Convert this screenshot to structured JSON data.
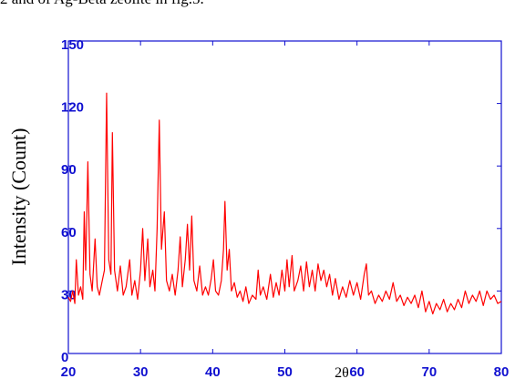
{
  "chart_data": {
    "type": "line",
    "annotation": "2 and of Ag-Beta zeolite in fig.5.",
    "xlabel": "2θ",
    "ylabel": "Intensity (Count)",
    "xlim": [
      20,
      80
    ],
    "xticks": [
      20,
      30,
      40,
      50,
      60,
      70,
      80
    ],
    "ylim": [
      0,
      150
    ],
    "yticks": [
      0,
      30,
      60,
      90,
      120,
      150
    ],
    "color": "#ff0000",
    "x": [
      20,
      20.3,
      20.6,
      20.9,
      21.1,
      21.4,
      21.7,
      22,
      22.2,
      22.4,
      22.7,
      23,
      23.3,
      23.7,
      24,
      24.3,
      24.7,
      25,
      25.3,
      25.6,
      25.9,
      26.1,
      26.4,
      26.8,
      27.2,
      27.6,
      28,
      28.5,
      28.8,
      29.2,
      29.6,
      30,
      30.3,
      30.6,
      31,
      31.3,
      31.7,
      32,
      32.3,
      32.6,
      32.9,
      33.3,
      33.6,
      34,
      34.4,
      34.8,
      35.2,
      35.5,
      35.8,
      36.2,
      36.5,
      36.8,
      37.1,
      37.4,
      37.8,
      38.2,
      38.6,
      39,
      39.4,
      39.8,
      40.1,
      40.4,
      40.8,
      41.2,
      41.5,
      41.7,
      42,
      42.3,
      42.6,
      43,
      43.4,
      43.8,
      44.2,
      44.6,
      45,
      45.5,
      46,
      46.3,
      46.6,
      47,
      47.5,
      48,
      48.4,
      48.8,
      49.2,
      49.6,
      50,
      50.3,
      50.6,
      51,
      51.3,
      51.8,
      52.2,
      52.6,
      53,
      53.4,
      53.8,
      54.2,
      54.6,
      55,
      55.4,
      55.8,
      56.2,
      56.6,
      57,
      57.5,
      58,
      58.5,
      59,
      59.5,
      60,
      60.5,
      61,
      61.3,
      61.6,
      62,
      62.5,
      63,
      63.5,
      64,
      64.5,
      65,
      65.5,
      66,
      66.5,
      67,
      67.5,
      68,
      68.5,
      69,
      69.5,
      70,
      70.5,
      71,
      71.5,
      72,
      72.5,
      73,
      73.5,
      74,
      74.5,
      75,
      75.5,
      76,
      76.5,
      77,
      77.5,
      78,
      78.5,
      79,
      79.5,
      80
    ],
    "values": [
      27,
      25,
      30,
      24,
      45,
      28,
      32,
      26,
      68,
      40,
      92,
      38,
      30,
      55,
      32,
      28,
      35,
      40,
      125,
      45,
      38,
      106,
      40,
      30,
      42,
      28,
      32,
      45,
      28,
      35,
      26,
      40,
      60,
      35,
      55,
      32,
      40,
      30,
      60,
      112,
      50,
      68,
      35,
      30,
      38,
      28,
      40,
      56,
      32,
      45,
      62,
      40,
      66,
      35,
      30,
      42,
      28,
      32,
      28,
      36,
      45,
      30,
      28,
      35,
      50,
      73,
      40,
      50,
      30,
      34,
      27,
      30,
      25,
      32,
      24,
      28,
      26,
      40,
      28,
      32,
      26,
      38,
      27,
      34,
      28,
      40,
      30,
      45,
      32,
      47,
      30,
      35,
      42,
      30,
      44,
      32,
      40,
      30,
      43,
      35,
      40,
      32,
      38,
      28,
      36,
      26,
      32,
      27,
      35,
      28,
      34,
      26,
      38,
      43,
      28,
      30,
      24,
      28,
      25,
      30,
      26,
      34,
      25,
      28,
      23,
      27,
      24,
      28,
      22,
      30,
      20,
      25,
      19,
      24,
      21,
      26,
      20,
      24,
      21,
      26,
      22,
      30,
      24,
      28,
      25,
      30,
      23,
      30,
      26,
      28,
      24,
      25
    ]
  }
}
